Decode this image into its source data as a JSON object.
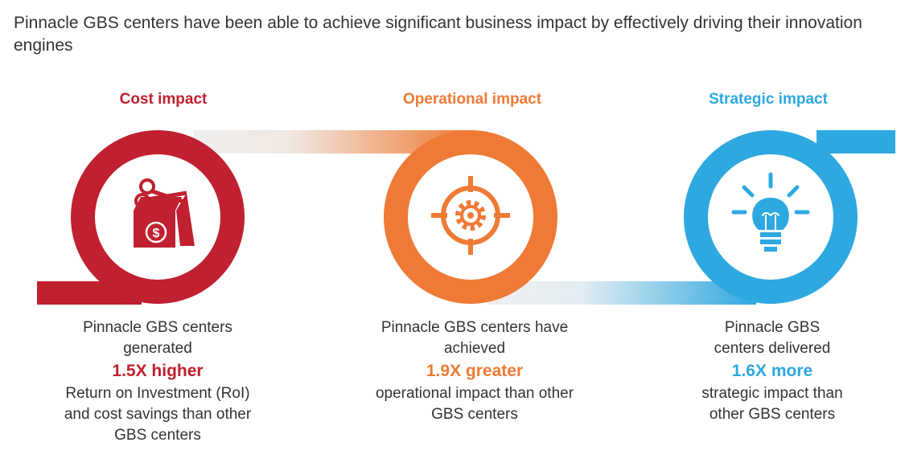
{
  "headline": "Pinnacle GBS centers have been able to achieve significant business impact by effectively driving their innovation engines",
  "colors": {
    "cost": "#c0202f",
    "operational": "#ef7a35",
    "strategic": "#2ea8e0"
  },
  "impacts": [
    {
      "title": "Cost impact",
      "icon": "scissors-dollar-icon",
      "before": "Pinnacle GBS centers generated",
      "highlight": "1.5X higher",
      "after": "Return on Investment (RoI) and cost savings than other GBS centers"
    },
    {
      "title": "Operational impact",
      "icon": "target-gear-icon",
      "before": "Pinnacle GBS centers have achieved",
      "highlight": "1.9X greater",
      "after": "operational impact than other GBS centers"
    },
    {
      "title": "Strategic impact",
      "icon": "lightbulb-icon",
      "before": "Pinnacle GBS centers delivered",
      "highlight": "1.6X more",
      "after": "strategic impact than other GBS centers"
    }
  ]
}
